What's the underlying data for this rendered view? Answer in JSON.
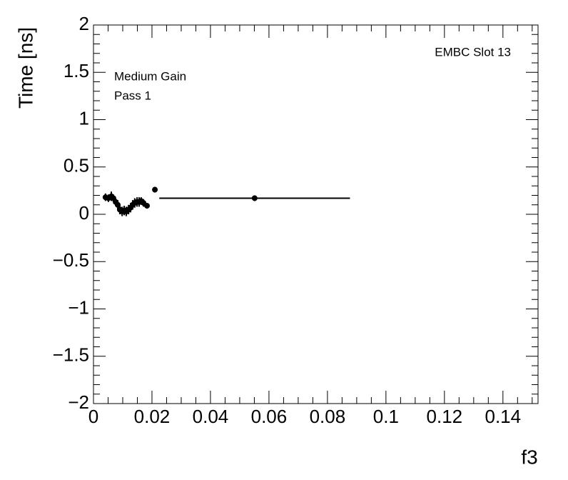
{
  "chart_data": {
    "type": "scatter",
    "x_label": "f3",
    "y_label": "Time [ns]",
    "annotations": [
      "Medium Gain",
      "Pass 1",
      "EMBC Slot 13"
    ],
    "color": "#000000",
    "x": [
      0.0041,
      0.0051,
      0.0061,
      0.0068,
      0.0076,
      0.0083,
      0.009,
      0.0098,
      0.0105,
      0.0112,
      0.012,
      0.0127,
      0.0134,
      0.0141,
      0.0149,
      0.0156,
      0.0163,
      0.0171,
      0.0183,
      0.021,
      0.0551
    ],
    "xerr": [
      0.0004,
      0.0004,
      0.0004,
      0.0004,
      0.0004,
      0.0004,
      0.0004,
      0.0004,
      0.0004,
      0.0004,
      0.0004,
      0.0004,
      0.0004,
      0.0004,
      0.0004,
      0.0004,
      0.0004,
      0.0004,
      0.0004,
      0.0008,
      0.0326
    ],
    "values": [
      0.18,
      0.17,
      0.19,
      0.17,
      0.13,
      0.1,
      0.05,
      0.03,
      0.04,
      0.03,
      0.05,
      0.07,
      0.1,
      0.12,
      0.13,
      0.13,
      0.14,
      0.12,
      0.09,
      0.26,
      0.17
    ],
    "yerr": [
      0.04,
      0.04,
      0.05,
      0.04,
      0.04,
      0.05,
      0.05,
      0.05,
      0.05,
      0.05,
      0.05,
      0.05,
      0.05,
      0.05,
      0.05,
      0.05,
      0.04,
      0.04,
      0.03,
      0.03,
      0.03
    ],
    "xlim": [
      0,
      0.152
    ],
    "ylim": [
      -2,
      2
    ],
    "xticks": [
      0,
      0.02,
      0.04,
      0.06,
      0.08,
      0.1,
      0.12,
      0.14
    ],
    "yticks": [
      {
        "value": -2,
        "label": "−2"
      },
      {
        "value": -1.5,
        "label": "−1.5"
      },
      {
        "value": -1,
        "label": "−1"
      },
      {
        "value": -0.5,
        "label": "−0.5"
      },
      0,
      0.5,
      1,
      1.5,
      2
    ]
  }
}
